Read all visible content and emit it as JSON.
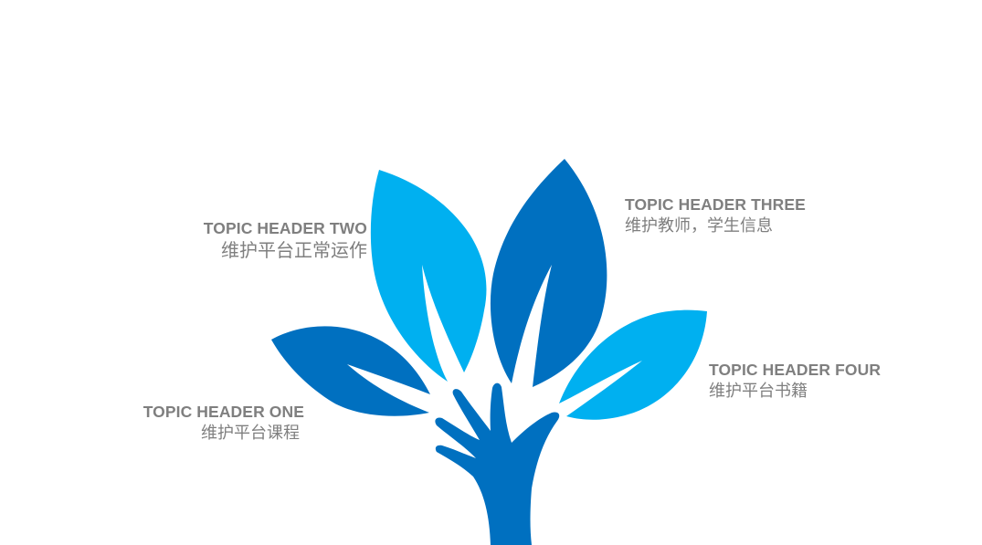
{
  "colors": {
    "dark_blue": "#0070C0",
    "light_blue": "#00B0F0",
    "text_gray": "#7F7F7F",
    "background": "#FFFFFF"
  },
  "topics": {
    "one": {
      "title": "TOPIC HEADER ONE",
      "desc": "维护平台课程"
    },
    "two": {
      "title": "TOPIC HEADER TWO",
      "desc": "维护平台正常运作"
    },
    "three": {
      "title": "TOPIC HEADER THREE",
      "desc": "维护教师，学生信息"
    },
    "four": {
      "title": "TOPIC HEADER FOUR",
      "desc": "维护平台书籍"
    }
  }
}
